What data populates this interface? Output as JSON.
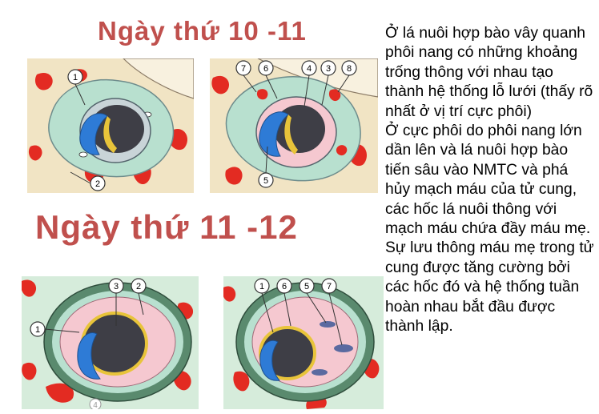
{
  "titles": {
    "top": "Ngày thứ 10 -11",
    "middle": "Ngày thứ 11 -12"
  },
  "description": {
    "paragraph1": "Ở lá nuôi hợp bào vây quanh phôi nang có những khoảng trống thông với nhau tạo thành hệ thống lỗ lưới (thấy rõ nhất ở vị trí cực phôi)",
    "paragraph2": "Ở cực phôi do phôi nang lớn dần lên và lá nuôi hợp bào tiến sâu vào NMTC và phá hủy mạch máu của tử cung, các hốc lá nuôi thông với mạch máu chứa đầy máu mẹ. Sự lưu thông máu mẹ trong tử cung được tăng cường bởi các hốc đó và hệ thống tuần hoàn nhau bắt đầu được thành lập."
  },
  "panels": {
    "panel1": {
      "labels": [
        "1",
        "2"
      ]
    },
    "panel2": {
      "labels": [
        "7",
        "6",
        "4",
        "3",
        "8",
        "5"
      ]
    },
    "panel3": {
      "labels": [
        "3",
        "2",
        "1",
        "4"
      ]
    },
    "panel4": {
      "labels": [
        "1",
        "6",
        "5",
        "7"
      ]
    }
  },
  "colors": {
    "title": "#c0504d",
    "tissue": "#f1e4c4",
    "blood": "#e32b22",
    "trophoblast": "#b8e0cf",
    "epiblast": "#2e7bd6",
    "hypoblast": "#e8c43a",
    "cavity": "#3e3e46",
    "mesoderm": "#f5c8d0"
  }
}
